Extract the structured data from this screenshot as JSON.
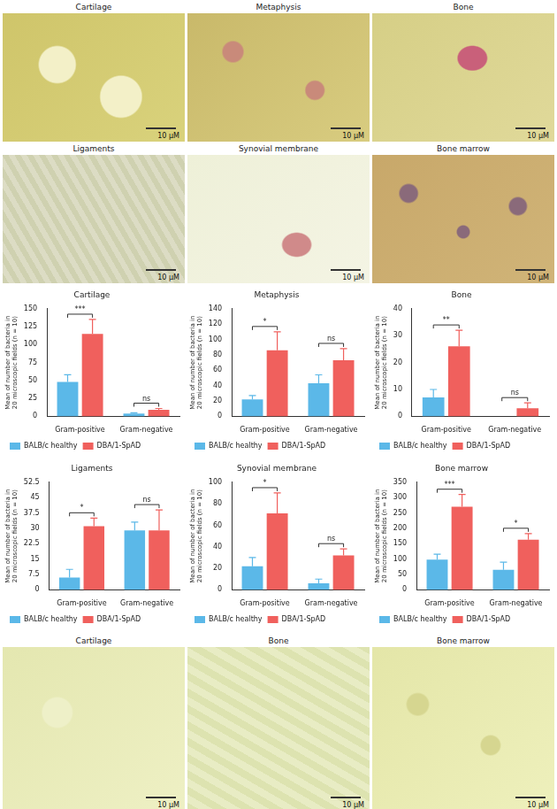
{
  "image_panels_top": [
    {
      "title": "Cartilage",
      "scale_bar": "10 μM"
    },
    {
      "title": "Metaphysis",
      "scale_bar": "10 μM"
    },
    {
      "title": "Bone",
      "scale_bar": "10 μM"
    },
    {
      "title": "Ligaments",
      "scale_bar": "10 μM"
    },
    {
      "title": "Synovial membrane",
      "scale_bar": "10 μM"
    },
    {
      "title": "Bone marrow",
      "scale_bar": "10 μM"
    }
  ],
  "chart_data": [
    {
      "type": "bar",
      "title": "Cartilage",
      "ylabel": "Mean of number of bacteria in 20 microscopic fields (n = 10)",
      "categories": [
        "Gram-positive",
        "Gram-negative"
      ],
      "series": [
        {
          "name": "BALB/c healthy",
          "color": "#5bb8e8",
          "values": [
            48,
            4
          ],
          "errors": [
            10,
            1
          ]
        },
        {
          "name": "DBA/1-SpAD",
          "color": "#f0605d",
          "values": [
            115,
            9
          ],
          "errors": [
            20,
            2
          ]
        }
      ],
      "annotations": [
        "***",
        "ns"
      ],
      "ylim": [
        0,
        150
      ],
      "yticks": [
        0,
        25,
        50,
        75,
        100,
        125,
        150
      ],
      "grid": false,
      "legend": "bottom"
    },
    {
      "type": "bar",
      "title": "Metaphysis",
      "ylabel": "Mean of number of bacteria in 20 microscopic fields (n = 10)",
      "categories": [
        "Gram-positive",
        "Gram-negative"
      ],
      "series": [
        {
          "name": "BALB/c healthy",
          "color": "#5bb8e8",
          "values": [
            22,
            43
          ],
          "errors": [
            5,
            11
          ]
        },
        {
          "name": "DBA/1-SpAD",
          "color": "#f0605d",
          "values": [
            86,
            73
          ],
          "errors": [
            24,
            15
          ]
        }
      ],
      "annotations": [
        "*",
        "ns"
      ],
      "ylim": [
        0,
        140
      ],
      "yticks": [
        0,
        20,
        40,
        60,
        80,
        100,
        120,
        140
      ],
      "grid": false,
      "legend": "bottom"
    },
    {
      "type": "bar",
      "title": "Bone",
      "ylabel": "Mean of number of bacteria in 20 microscopic fields (n = 10)",
      "categories": [
        "Gram-positive",
        "Gram-negative"
      ],
      "series": [
        {
          "name": "BALB/c healthy",
          "color": "#5bb8e8",
          "values": [
            7,
            0
          ],
          "errors": [
            3,
            0
          ]
        },
        {
          "name": "DBA/1-SpAD",
          "color": "#f0605d",
          "values": [
            26,
            3
          ],
          "errors": [
            6,
            2
          ]
        }
      ],
      "annotations": [
        "**",
        "ns"
      ],
      "ylim": [
        0,
        40
      ],
      "yticks": [
        0,
        10,
        20,
        30,
        40
      ],
      "grid": false,
      "legend": "bottom"
    },
    {
      "type": "bar",
      "title": "Ligaments",
      "ylabel": "Mean of number of bacteria in 20 microscopic fields (n = 10)",
      "categories": [
        "Gram-positive",
        "Gram-negative"
      ],
      "series": [
        {
          "name": "BALB/c healthy",
          "color": "#5bb8e8",
          "values": [
            6,
            29
          ],
          "errors": [
            4,
            4
          ]
        },
        {
          "name": "DBA/1-SpAD",
          "color": "#f0605d",
          "values": [
            31,
            29
          ],
          "errors": [
            4,
            10
          ]
        }
      ],
      "annotations": [
        "*",
        "ns"
      ],
      "ylim": [
        0,
        52.5
      ],
      "yticks": [
        0,
        7.5,
        15,
        22.5,
        30,
        37.5,
        45,
        52.5
      ],
      "grid": false,
      "legend": "bottom"
    },
    {
      "type": "bar",
      "title": "Synovial membrane",
      "ylabel": "Mean of number of bacteria in 20 microscopic fields (n = 10)",
      "categories": [
        "Gram-positive",
        "Gram-negative"
      ],
      "series": [
        {
          "name": "BALB/c healthy",
          "color": "#5bb8e8",
          "values": [
            22,
            6
          ],
          "errors": [
            8,
            4
          ]
        },
        {
          "name": "DBA/1-SpAD",
          "color": "#f0605d",
          "values": [
            71,
            32
          ],
          "errors": [
            19,
            6
          ]
        }
      ],
      "annotations": [
        "*",
        "ns"
      ],
      "ylim": [
        0,
        100
      ],
      "yticks": [
        0,
        20,
        40,
        60,
        80,
        100
      ],
      "grid": false,
      "legend": "bottom"
    },
    {
      "type": "bar",
      "title": "Bone marrow",
      "ylabel": "Mean of number of bacteria in 20 microscopic fields (n = 10)",
      "categories": [
        "Gram-positive",
        "Gram-negative"
      ],
      "series": [
        {
          "name": "BALB/c healthy",
          "color": "#5bb8e8",
          "values": [
            98,
            65
          ],
          "errors": [
            18,
            25
          ]
        },
        {
          "name": "DBA/1-SpAD",
          "color": "#f0605d",
          "values": [
            270,
            163
          ],
          "errors": [
            40,
            20
          ]
        }
      ],
      "annotations": [
        "***",
        "*"
      ],
      "ylim": [
        0,
        350
      ],
      "yticks": [
        0,
        50,
        100,
        150,
        200,
        250,
        300,
        350
      ],
      "grid": false,
      "legend": "bottom"
    }
  ],
  "image_panels_bottom": [
    {
      "title": "Cartilage",
      "scale_bar": "10 μM"
    },
    {
      "title": "Bone",
      "scale_bar": "10 μM"
    },
    {
      "title": "Bone marrow",
      "scale_bar": "10 μM"
    }
  ]
}
